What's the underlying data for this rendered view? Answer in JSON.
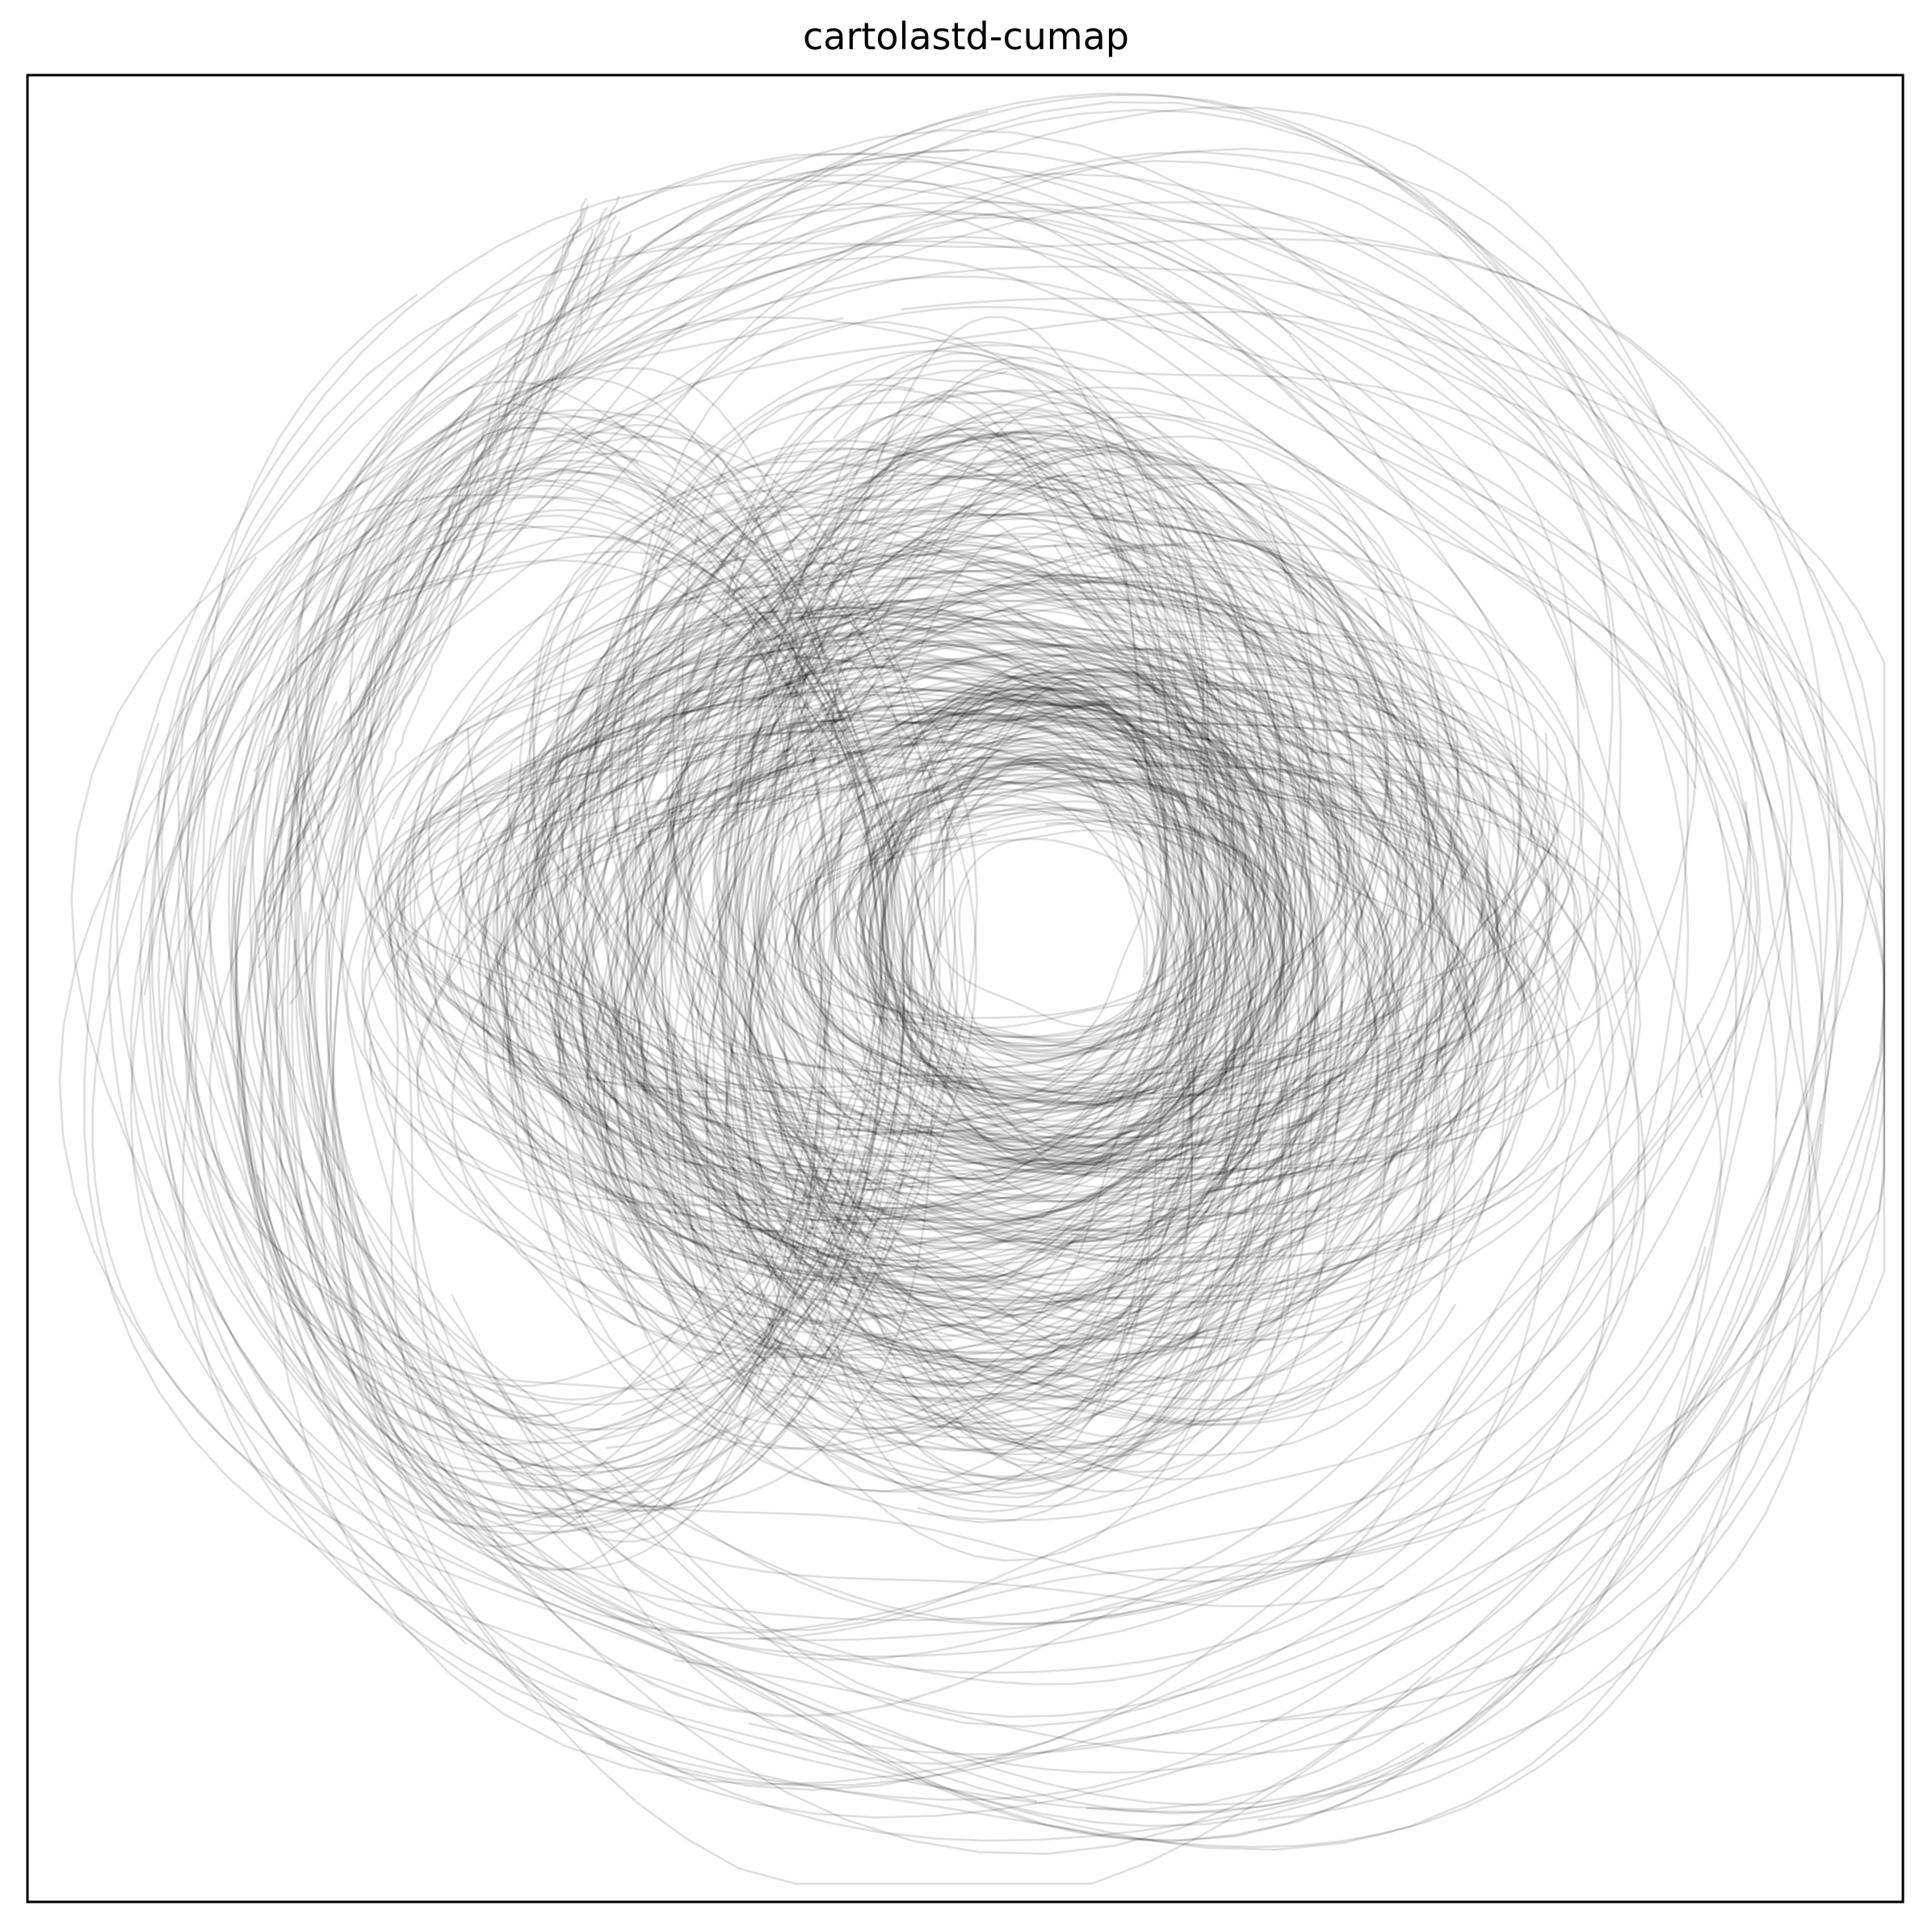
{
  "chart_data": {
    "type": "line",
    "title": "cartolastd-cumap",
    "xlabel": "",
    "ylabel": "",
    "xlim": [
      -1,
      1
    ],
    "ylim": [
      -1,
      1
    ],
    "ticks": "none",
    "grid": false,
    "legend": "none",
    "line_color": "#000000",
    "line_opacity": 0.13,
    "description_of_series": [
      {
        "family": "outer-ring",
        "count": 22,
        "cx": 0.04,
        "cy": 0.0,
        "r": 0.91,
        "ry": 0.89,
        "spread": 0.05,
        "wobble": 0.06
      },
      {
        "family": "second-ring",
        "count": 18,
        "cx": 0.02,
        "cy": 0.03,
        "r": 0.74,
        "ry": 0.76,
        "spread": 0.04,
        "wobble": 0.08
      },
      {
        "family": "dense-swirl",
        "count": 260,
        "cx": 0.03,
        "cy": 0.06,
        "r": 0.42,
        "ry": 0.4,
        "spread": 0.2,
        "wobble": 0.1
      },
      {
        "family": "inner-loop",
        "count": 90,
        "cx": 0.08,
        "cy": 0.07,
        "r": 0.2,
        "ry": 0.19,
        "spread": 0.08,
        "wobble": 0.06
      },
      {
        "family": "left-arc",
        "count": 40,
        "cx": -0.42,
        "cy": 0.02,
        "r": 0.34,
        "ry": 0.55,
        "spread": 0.08,
        "wobble": 0.05
      },
      {
        "family": "diagonal-strands",
        "count": 14,
        "cx": -0.38,
        "cy": 0.55,
        "r": 0.3,
        "ry": 0.3,
        "spread": 0.06,
        "wobble": 0.02
      }
    ]
  }
}
